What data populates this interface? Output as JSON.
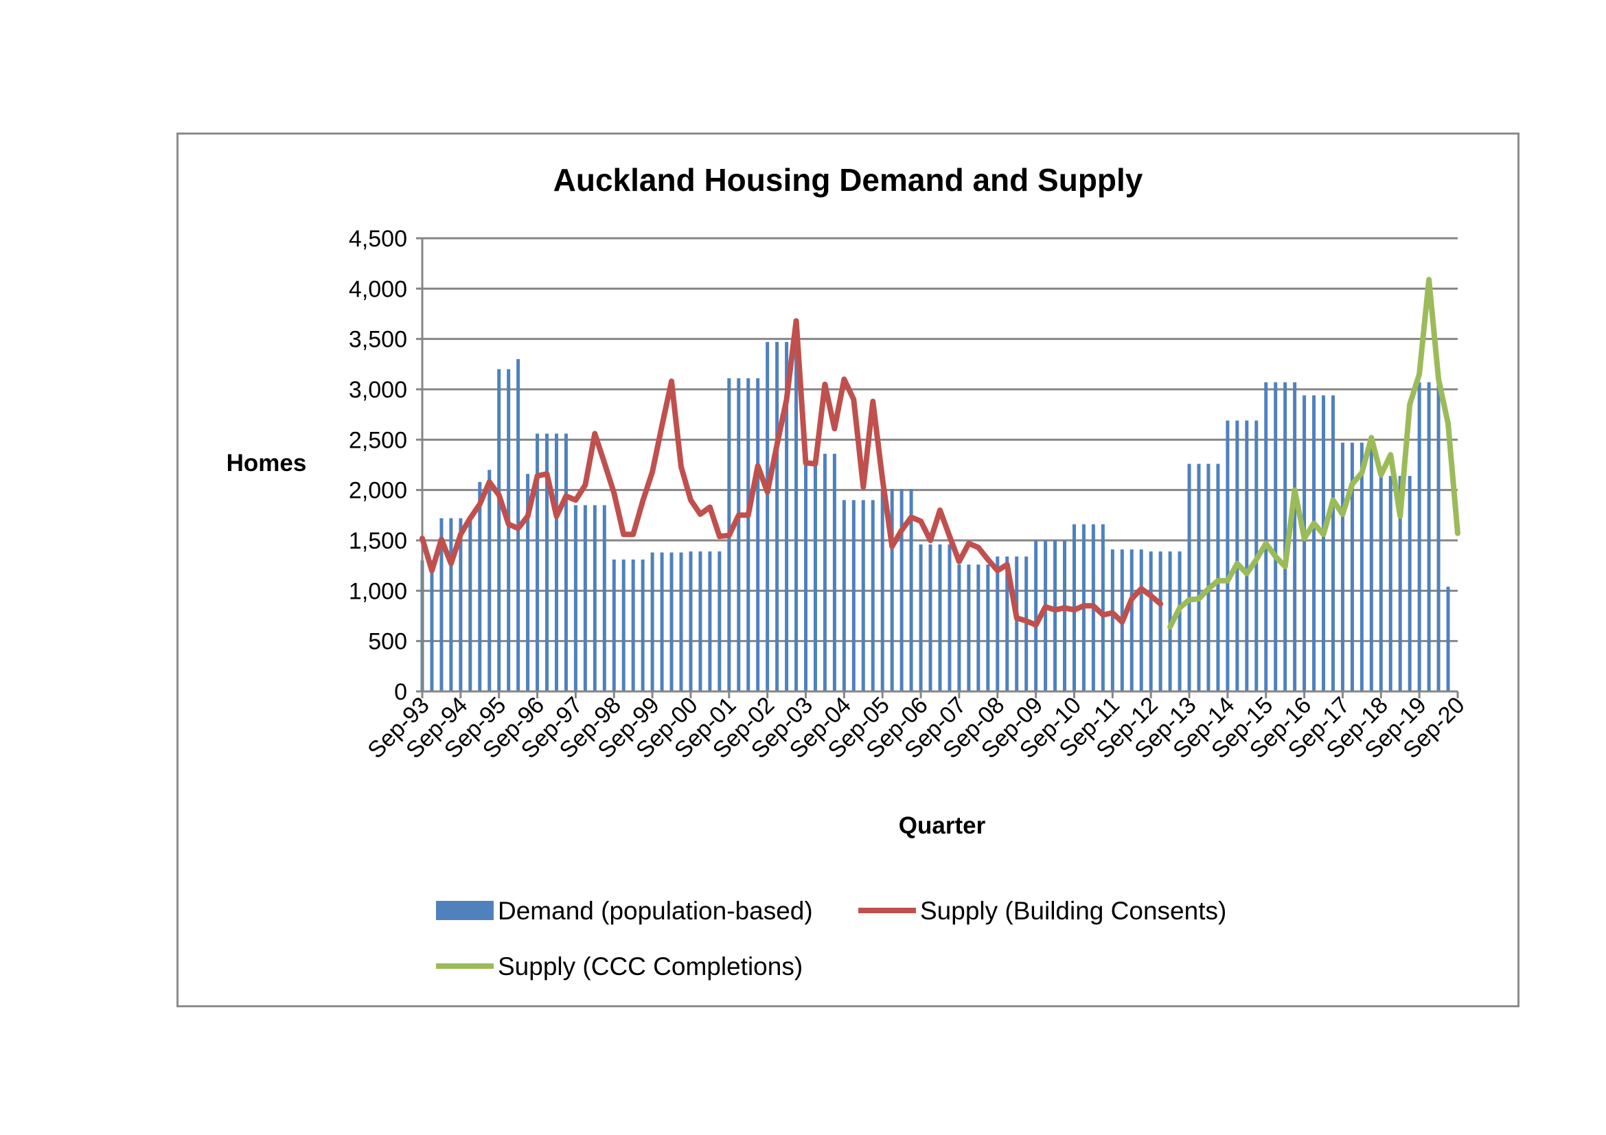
{
  "chart_data": {
    "type": "bar",
    "title": "Auckland Housing Demand and Supply",
    "xlabel": "Quarter",
    "ylabel": "Homes",
    "ylim": [
      0,
      4500
    ],
    "yticks": [
      0,
      500,
      1000,
      1500,
      2000,
      2500,
      3000,
      3500,
      4000,
      4500
    ],
    "ytick_labels": [
      "0",
      "500",
      "1,000",
      "1,500",
      "2,000",
      "2,500",
      "3,000",
      "3,500",
      "4,000",
      "4,500"
    ],
    "grid": true,
    "legend_position": "bottom",
    "categories": [
      "Sep-93",
      "Dec-93",
      "Mar-94",
      "Jun-94",
      "Sep-94",
      "Dec-94",
      "Mar-95",
      "Jun-95",
      "Sep-95",
      "Dec-95",
      "Mar-96",
      "Jun-96",
      "Sep-96",
      "Dec-96",
      "Mar-97",
      "Jun-97",
      "Sep-97",
      "Dec-97",
      "Mar-98",
      "Jun-98",
      "Sep-98",
      "Dec-98",
      "Mar-99",
      "Jun-99",
      "Sep-99",
      "Dec-99",
      "Mar-00",
      "Jun-00",
      "Sep-00",
      "Dec-00",
      "Mar-01",
      "Jun-01",
      "Sep-01",
      "Dec-01",
      "Mar-02",
      "Jun-02",
      "Sep-02",
      "Dec-02",
      "Mar-03",
      "Jun-03",
      "Sep-03",
      "Dec-03",
      "Mar-04",
      "Jun-04",
      "Sep-04",
      "Dec-04",
      "Mar-05",
      "Jun-05",
      "Sep-05",
      "Dec-05",
      "Mar-06",
      "Jun-06",
      "Sep-06",
      "Dec-06",
      "Mar-07",
      "Jun-07",
      "Sep-07",
      "Dec-07",
      "Mar-08",
      "Jun-08",
      "Sep-08",
      "Dec-08",
      "Mar-09",
      "Jun-09",
      "Sep-09",
      "Dec-09",
      "Mar-10",
      "Jun-10",
      "Sep-10",
      "Dec-10",
      "Mar-11",
      "Jun-11",
      "Sep-11",
      "Dec-11",
      "Mar-12",
      "Jun-12",
      "Sep-12",
      "Dec-12",
      "Mar-13",
      "Jun-13",
      "Sep-13",
      "Dec-13",
      "Mar-14",
      "Jun-14",
      "Sep-14",
      "Dec-14",
      "Mar-15",
      "Jun-15",
      "Sep-15",
      "Dec-15",
      "Mar-16",
      "Jun-16",
      "Sep-16",
      "Dec-16",
      "Mar-17",
      "Jun-17",
      "Sep-17",
      "Dec-17",
      "Mar-18",
      "Jun-18",
      "Sep-18",
      "Dec-18",
      "Mar-19",
      "Jun-19",
      "Sep-19",
      "Dec-19",
      "Mar-20",
      "Jun-20",
      "Sep-20"
    ],
    "xtick_labels": [
      "Sep-93",
      "Sep-94",
      "Sep-95",
      "Sep-96",
      "Sep-97",
      "Sep-98",
      "Sep-99",
      "Sep-00",
      "Sep-01",
      "Sep-02",
      "Sep-03",
      "Sep-04",
      "Sep-05",
      "Sep-06",
      "Sep-07",
      "Sep-08",
      "Sep-09",
      "Sep-10",
      "Sep-11",
      "Sep-12",
      "Sep-13",
      "Sep-14",
      "Sep-15",
      "Sep-16",
      "Sep-17",
      "Sep-18",
      "Sep-19",
      "Sep-20"
    ],
    "series": [
      {
        "name": "Demand (population-based)",
        "type": "bar",
        "color": "#4f81bd",
        "values": [
          1300,
          1300,
          1720,
          1720,
          1720,
          1720,
          2080,
          2200,
          3200,
          3200,
          3300,
          2160,
          2560,
          2560,
          2560,
          2560,
          1850,
          1850,
          1850,
          1850,
          1310,
          1310,
          1310,
          1310,
          1380,
          1380,
          1380,
          1380,
          1390,
          1390,
          1390,
          1390,
          3110,
          3110,
          3110,
          3110,
          3470,
          3470,
          3470,
          3470,
          2360,
          2360,
          2360,
          2360,
          1900,
          1900,
          1900,
          1900,
          2010,
          2010,
          2010,
          2010,
          1460,
          1460,
          1460,
          1460,
          1260,
          1260,
          1260,
          1260,
          1340,
          1340,
          1340,
          1340,
          1500,
          1500,
          1500,
          1500,
          1660,
          1660,
          1660,
          1660,
          1410,
          1410,
          1410,
          1410,
          1390,
          1390,
          1390,
          1390,
          2260,
          2260,
          2260,
          2260,
          2690,
          2690,
          2690,
          2690,
          3070,
          3070,
          3070,
          3070,
          2940,
          2940,
          2940,
          2940,
          2470,
          2470,
          2470,
          2470,
          2140,
          2140,
          2140,
          2140,
          3070,
          3070,
          3070,
          1040,
          null
        ]
      },
      {
        "name": "Supply (Building Consents)",
        "type": "line",
        "color": "#c0504d",
        "values": [
          1520,
          1200,
          1510,
          1270,
          1560,
          1720,
          1860,
          2080,
          1950,
          1660,
          1620,
          1740,
          2140,
          2160,
          1740,
          1940,
          1900,
          2050,
          2560,
          2270,
          1970,
          1560,
          1560,
          1890,
          2180,
          2640,
          3080,
          2230,
          1900,
          1760,
          1830,
          1540,
          1550,
          1750,
          1750,
          2240,
          1980,
          2450,
          2900,
          3680,
          2270,
          2260,
          3050,
          2610,
          3100,
          2900,
          2030,
          2880,
          2110,
          1440,
          1600,
          1730,
          1690,
          1500,
          1800,
          1540,
          1290,
          1470,
          1430,
          1310,
          1200,
          1260,
          730,
          700,
          660,
          840,
          810,
          830,
          810,
          850,
          850,
          760,
          780,
          690,
          920,
          1020,
          950,
          870,
          null,
          null,
          null,
          null,
          null,
          null,
          null,
          null,
          null,
          null,
          null,
          null,
          null,
          null,
          null,
          null,
          null,
          null,
          null,
          null,
          null,
          null,
          null,
          null,
          null,
          null,
          null,
          null,
          null,
          null,
          null
        ]
      },
      {
        "name": "Supply (CCC Completions)",
        "type": "line",
        "color": "#9bbb59",
        "values": [
          null,
          null,
          null,
          null,
          null,
          null,
          null,
          null,
          null,
          null,
          null,
          null,
          null,
          null,
          null,
          null,
          null,
          null,
          null,
          null,
          null,
          null,
          null,
          null,
          null,
          null,
          null,
          null,
          null,
          null,
          null,
          null,
          null,
          null,
          null,
          null,
          null,
          null,
          null,
          null,
          null,
          null,
          null,
          null,
          null,
          null,
          null,
          null,
          null,
          null,
          null,
          null,
          null,
          null,
          null,
          null,
          null,
          null,
          null,
          null,
          null,
          null,
          null,
          null,
          null,
          null,
          null,
          null,
          null,
          null,
          null,
          null,
          null,
          null,
          null,
          null,
          null,
          null,
          640,
          830,
          910,
          920,
          1020,
          1100,
          1100,
          1270,
          1170,
          1310,
          1470,
          1340,
          1240,
          2000,
          1520,
          1670,
          1560,
          1900,
          1760,
          2060,
          2170,
          2520,
          2150,
          2350,
          1740,
          2850,
          3150,
          4090,
          3100,
          2660,
          1570
        ]
      }
    ]
  }
}
